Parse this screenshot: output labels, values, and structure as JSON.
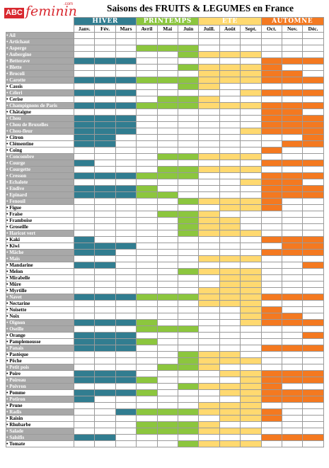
{
  "logo": {
    "abc": "ABC",
    "brand": "feminin",
    "com": ".com"
  },
  "title": "Saisons des FRUITS & LEGUMES en France",
  "seasons": [
    {
      "label": "HIVER",
      "span": 3,
      "color": "#317d90"
    },
    {
      "label": "PRINTEMPS",
      "span": 3,
      "color": "#8cc63e"
    },
    {
      "label": "ETE",
      "span": 3,
      "color": "#ffd970"
    },
    {
      "label": "AUTOMNE",
      "span": 3,
      "color": "#f47920"
    }
  ],
  "months": [
    "Janv.",
    "Fév.",
    "Mars",
    "Avril",
    "Mai",
    "Juin",
    "Juill.",
    "Août",
    "Sept.",
    "Oct.",
    "Nov.",
    "Déc."
  ],
  "colors": {
    "hiver": "#317d90",
    "printemps": "#8cc63e",
    "ete": "#ffd970",
    "automne": "#f47920",
    "legume_row": "#a8a8a8"
  },
  "items": [
    {
      "name": "• Ail",
      "type": "veg",
      "months": [
        0,
        0,
        0,
        0,
        0,
        0,
        0,
        0,
        0,
        0,
        0,
        0
      ]
    },
    {
      "name": "• Artichaut",
      "type": "veg",
      "months": [
        0,
        0,
        0,
        0,
        0,
        0,
        0,
        0,
        0,
        0,
        0,
        0
      ]
    },
    {
      "name": "• Asperge",
      "type": "veg",
      "months": [
        0,
        0,
        0,
        1,
        1,
        1,
        0,
        0,
        0,
        0,
        0,
        0
      ]
    },
    {
      "name": "• Aubergine",
      "type": "veg",
      "months": [
        0,
        0,
        0,
        0,
        0,
        1,
        1,
        1,
        1,
        0,
        0,
        0
      ]
    },
    {
      "name": "• Betterave",
      "type": "veg",
      "months": [
        1,
        1,
        1,
        0,
        0,
        0,
        0,
        0,
        0,
        1,
        1,
        1
      ]
    },
    {
      "name": "• Blette",
      "type": "veg",
      "months": [
        0,
        0,
        0,
        0,
        0,
        1,
        1,
        1,
        1,
        1,
        0,
        0
      ]
    },
    {
      "name": "• Brocoli",
      "type": "veg",
      "months": [
        0,
        0,
        0,
        0,
        0,
        0,
        1,
        1,
        1,
        1,
        1,
        0
      ]
    },
    {
      "name": "• Carotte",
      "type": "veg",
      "months": [
        1,
        1,
        1,
        1,
        1,
        1,
        1,
        1,
        1,
        1,
        1,
        1
      ]
    },
    {
      "name": "• Cassis",
      "type": "fruit",
      "months": [
        0,
        0,
        0,
        0,
        0,
        1,
        1,
        0,
        0,
        0,
        0,
        0
      ]
    },
    {
      "name": "• Céleri",
      "type": "veg",
      "months": [
        1,
        1,
        1,
        0,
        0,
        0,
        0,
        0,
        1,
        1,
        1,
        1
      ]
    },
    {
      "name": "• Cerise",
      "type": "fruit",
      "months": [
        0,
        0,
        0,
        0,
        1,
        1,
        1,
        0,
        0,
        0,
        0,
        0
      ]
    },
    {
      "name": "• Champignons de Paris",
      "type": "veg",
      "months": [
        1,
        1,
        1,
        1,
        1,
        1,
        1,
        1,
        1,
        1,
        1,
        1
      ]
    },
    {
      "name": "• Châtaigne",
      "type": "fruit",
      "months": [
        0,
        0,
        0,
        0,
        0,
        0,
        0,
        0,
        0,
        1,
        1,
        0
      ]
    },
    {
      "name": "• Chou",
      "type": "veg",
      "months": [
        1,
        1,
        1,
        0,
        0,
        0,
        0,
        0,
        0,
        1,
        1,
        1
      ]
    },
    {
      "name": "• Chou de Bruxelles",
      "type": "veg",
      "months": [
        1,
        1,
        1,
        0,
        0,
        0,
        0,
        0,
        0,
        1,
        1,
        1
      ]
    },
    {
      "name": "• Chou-fleur",
      "type": "veg",
      "months": [
        1,
        1,
        1,
        0,
        0,
        0,
        0,
        0,
        1,
        1,
        1,
        1
      ]
    },
    {
      "name": "• Citron",
      "type": "fruit",
      "months": [
        1,
        1,
        0,
        0,
        0,
        0,
        0,
        0,
        0,
        0,
        0,
        1
      ]
    },
    {
      "name": "• Clémentine",
      "type": "fruit",
      "months": [
        1,
        1,
        0,
        0,
        0,
        0,
        0,
        0,
        0,
        0,
        1,
        1
      ]
    },
    {
      "name": "• Coing",
      "type": "fruit",
      "months": [
        0,
        0,
        0,
        0,
        0,
        0,
        0,
        0,
        0,
        1,
        0,
        0
      ]
    },
    {
      "name": "• Concombre",
      "type": "veg",
      "months": [
        0,
        0,
        0,
        0,
        1,
        1,
        1,
        1,
        1,
        0,
        0,
        0
      ]
    },
    {
      "name": "• Courge",
      "type": "veg",
      "months": [
        1,
        0,
        0,
        0,
        0,
        0,
        0,
        0,
        0,
        1,
        1,
        1
      ]
    },
    {
      "name": "• Courgette",
      "type": "veg",
      "months": [
        0,
        0,
        0,
        0,
        1,
        1,
        1,
        1,
        1,
        0,
        0,
        0
      ]
    },
    {
      "name": "• Cresson",
      "type": "veg",
      "months": [
        1,
        1,
        1,
        1,
        1,
        1,
        0,
        0,
        0,
        1,
        1,
        1
      ]
    },
    {
      "name": "• Echalote",
      "type": "veg",
      "months": [
        0,
        0,
        0,
        0,
        0,
        0,
        0,
        0,
        1,
        1,
        1,
        0
      ]
    },
    {
      "name": "• Endive",
      "type": "veg",
      "months": [
        1,
        1,
        1,
        1,
        0,
        0,
        0,
        0,
        0,
        1,
        1,
        1
      ]
    },
    {
      "name": "• Epinard",
      "type": "veg",
      "months": [
        1,
        1,
        1,
        1,
        1,
        0,
        0,
        0,
        0,
        1,
        1,
        1
      ]
    },
    {
      "name": "• Fenouil",
      "type": "veg",
      "months": [
        0,
        0,
        0,
        0,
        0,
        1,
        1,
        1,
        1,
        1,
        0,
        0
      ]
    },
    {
      "name": "• Figue",
      "type": "fruit",
      "months": [
        0,
        0,
        0,
        0,
        0,
        0,
        0,
        1,
        1,
        1,
        0,
        0
      ]
    },
    {
      "name": "• Fraise",
      "type": "fruit",
      "months": [
        0,
        0,
        0,
        0,
        1,
        1,
        1,
        0,
        0,
        0,
        0,
        0
      ]
    },
    {
      "name": "• Framboise",
      "type": "fruit",
      "months": [
        0,
        0,
        0,
        0,
        0,
        1,
        1,
        1,
        0,
        0,
        0,
        0
      ]
    },
    {
      "name": "• Groseille",
      "type": "fruit",
      "months": [
        0,
        0,
        0,
        0,
        0,
        1,
        1,
        1,
        0,
        0,
        0,
        0
      ]
    },
    {
      "name": "• Haricot vert",
      "type": "veg",
      "months": [
        0,
        0,
        0,
        0,
        0,
        1,
        1,
        1,
        1,
        0,
        0,
        0
      ]
    },
    {
      "name": "• Kaki",
      "type": "fruit",
      "months": [
        1,
        0,
        0,
        0,
        0,
        0,
        0,
        0,
        0,
        1,
        1,
        1
      ]
    },
    {
      "name": "• Kiwi",
      "type": "fruit",
      "months": [
        1,
        1,
        1,
        0,
        0,
        0,
        0,
        0,
        0,
        0,
        1,
        1
      ]
    },
    {
      "name": "• Mâche",
      "type": "veg",
      "months": [
        1,
        1,
        0,
        0,
        0,
        0,
        0,
        0,
        0,
        1,
        1,
        1
      ]
    },
    {
      "name": "• Maïs",
      "type": "veg",
      "months": [
        0,
        0,
        0,
        0,
        0,
        0,
        1,
        1,
        1,
        0,
        0,
        0
      ]
    },
    {
      "name": "• Mandarine",
      "type": "fruit",
      "months": [
        1,
        1,
        0,
        0,
        0,
        0,
        0,
        0,
        0,
        0,
        0,
        1
      ]
    },
    {
      "name": "• Melon",
      "type": "fruit",
      "months": [
        0,
        0,
        0,
        0,
        0,
        1,
        1,
        1,
        1,
        0,
        0,
        0
      ]
    },
    {
      "name": "• Mirabelle",
      "type": "fruit",
      "months": [
        0,
        0,
        0,
        0,
        0,
        0,
        0,
        1,
        1,
        0,
        0,
        0
      ]
    },
    {
      "name": "• Mûre",
      "type": "fruit",
      "months": [
        0,
        0,
        0,
        0,
        0,
        0,
        0,
        1,
        1,
        0,
        0,
        0
      ]
    },
    {
      "name": "• Myrtille",
      "type": "fruit",
      "months": [
        0,
        0,
        0,
        0,
        0,
        0,
        1,
        1,
        1,
        0,
        0,
        0
      ]
    },
    {
      "name": "• Navet",
      "type": "veg",
      "months": [
        1,
        1,
        1,
        1,
        1,
        1,
        1,
        1,
        1,
        1,
        1,
        1
      ]
    },
    {
      "name": "• Nectarine",
      "type": "fruit",
      "months": [
        0,
        0,
        0,
        0,
        0,
        0,
        1,
        1,
        1,
        0,
        0,
        0
      ]
    },
    {
      "name": "• Noisette",
      "type": "fruit",
      "months": [
        0,
        0,
        0,
        0,
        0,
        0,
        0,
        0,
        1,
        1,
        0,
        0
      ]
    },
    {
      "name": "• Noix",
      "type": "fruit",
      "months": [
        0,
        0,
        0,
        0,
        0,
        0,
        0,
        0,
        1,
        1,
        1,
        0
      ]
    },
    {
      "name": "• Oignon",
      "type": "veg",
      "months": [
        1,
        1,
        1,
        1,
        0,
        0,
        0,
        0,
        1,
        1,
        1,
        1
      ]
    },
    {
      "name": "• Oseille",
      "type": "veg",
      "months": [
        0,
        0,
        0,
        1,
        1,
        1,
        0,
        0,
        0,
        0,
        0,
        0
      ]
    },
    {
      "name": "• Orange",
      "type": "fruit",
      "months": [
        1,
        1,
        1,
        0,
        0,
        0,
        0,
        0,
        0,
        0,
        0,
        1
      ]
    },
    {
      "name": "• Pamplemousse",
      "type": "fruit",
      "months": [
        1,
        1,
        1,
        1,
        0,
        0,
        0,
        0,
        0,
        0,
        0,
        0
      ]
    },
    {
      "name": "• Panais",
      "type": "veg",
      "months": [
        1,
        1,
        1,
        0,
        0,
        0,
        0,
        0,
        0,
        1,
        1,
        1
      ]
    },
    {
      "name": "• Pastèque",
      "type": "fruit",
      "months": [
        0,
        0,
        0,
        0,
        0,
        1,
        1,
        1,
        0,
        0,
        0,
        0
      ]
    },
    {
      "name": "• Pêche",
      "type": "fruit",
      "months": [
        0,
        0,
        0,
        0,
        0,
        1,
        1,
        1,
        1,
        0,
        0,
        0
      ]
    },
    {
      "name": "• Petit pois",
      "type": "veg",
      "months": [
        0,
        0,
        0,
        0,
        1,
        1,
        1,
        0,
        0,
        0,
        0,
        0
      ]
    },
    {
      "name": "• Poire",
      "type": "fruit",
      "months": [
        1,
        1,
        1,
        0,
        0,
        0,
        0,
        1,
        1,
        1,
        1,
        1
      ]
    },
    {
      "name": "• Poireau",
      "type": "veg",
      "months": [
        1,
        1,
        1,
        1,
        0,
        0,
        0,
        0,
        1,
        1,
        1,
        1
      ]
    },
    {
      "name": "• Poivron",
      "type": "veg",
      "months": [
        0,
        0,
        0,
        0,
        0,
        1,
        1,
        1,
        1,
        1,
        0,
        0
      ]
    },
    {
      "name": "• Pomme",
      "type": "fruit",
      "months": [
        1,
        1,
        1,
        1,
        0,
        0,
        0,
        1,
        1,
        1,
        1,
        1
      ]
    },
    {
      "name": "• Potiron",
      "type": "veg",
      "months": [
        1,
        0,
        0,
        0,
        0,
        0,
        0,
        0,
        1,
        1,
        1,
        1
      ]
    },
    {
      "name": "• Prune",
      "type": "fruit",
      "months": [
        0,
        0,
        0,
        0,
        0,
        0,
        1,
        1,
        1,
        0,
        0,
        0
      ]
    },
    {
      "name": "• Radis",
      "type": "veg",
      "months": [
        0,
        0,
        1,
        1,
        1,
        1,
        1,
        1,
        1,
        1,
        0,
        0
      ]
    },
    {
      "name": "• Raisin",
      "type": "fruit",
      "months": [
        0,
        0,
        0,
        0,
        0,
        0,
        0,
        1,
        1,
        1,
        0,
        0
      ]
    },
    {
      "name": "• Rhubarbe",
      "type": "fruit",
      "months": [
        0,
        0,
        0,
        1,
        1,
        1,
        1,
        0,
        0,
        0,
        0,
        0
      ]
    },
    {
      "name": "• Salade",
      "type": "veg",
      "months": [
        0,
        0,
        0,
        1,
        1,
        1,
        1,
        1,
        1,
        0,
        0,
        0
      ]
    },
    {
      "name": "• Salsifis",
      "type": "veg",
      "months": [
        1,
        1,
        0,
        0,
        0,
        0,
        0,
        0,
        0,
        1,
        1,
        1
      ]
    },
    {
      "name": "• Tomate",
      "type": "fruit",
      "months": [
        0,
        0,
        0,
        0,
        0,
        1,
        1,
        1,
        1,
        0,
        0,
        0
      ]
    }
  ]
}
